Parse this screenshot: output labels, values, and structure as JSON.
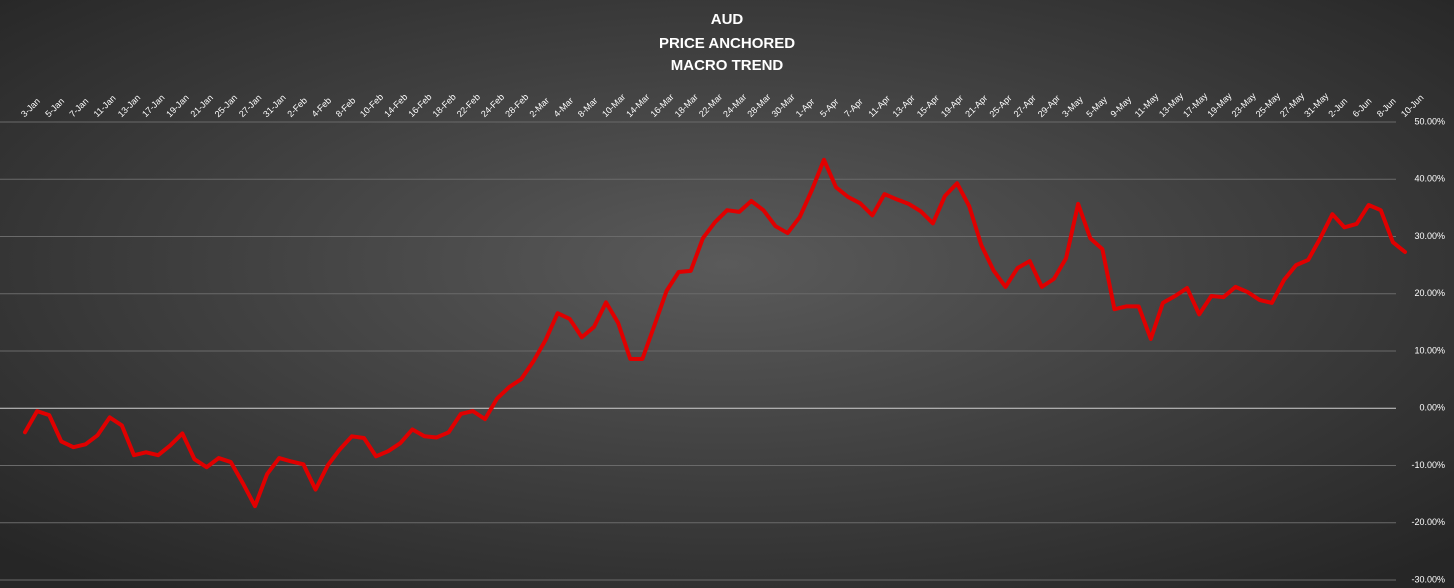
{
  "chart_data": {
    "type": "line",
    "title": [
      "AUD",
      "PRICE ANCHORED",
      "MACRO TREND"
    ],
    "categories": [
      "3-Jan",
      null,
      "5-Jan",
      null,
      "7-Jan",
      null,
      "11-Jan",
      null,
      "13-Jan",
      null,
      "17-Jan",
      null,
      "19-Jan",
      null,
      "21-Jan",
      null,
      "25-Jan",
      null,
      "27-Jan",
      null,
      "31-Jan",
      null,
      "2-Feb",
      null,
      "4-Feb",
      null,
      "8-Feb",
      null,
      "10-Feb",
      null,
      "14-Feb",
      null,
      "16-Feb",
      null,
      "18-Feb",
      null,
      "22-Feb",
      null,
      "24-Feb",
      null,
      "28-Feb",
      null,
      "2-Mar",
      null,
      "4-Mar",
      null,
      "8-Mar",
      null,
      "10-Mar",
      null,
      "14-Mar",
      null,
      "16-Mar",
      null,
      "18-Mar",
      null,
      "22-Mar",
      null,
      "24-Mar",
      null,
      "28-Mar",
      null,
      "30-Mar",
      null,
      "1-Apr",
      null,
      "5-Apr",
      null,
      "7-Apr",
      null,
      "11-Apr",
      null,
      "13-Apr",
      null,
      "15-Apr",
      null,
      "19-Apr",
      null,
      "21-Apr",
      null,
      "25-Apr",
      null,
      "27-Apr",
      null,
      "29-Apr",
      null,
      "3-May",
      null,
      "5-May",
      null,
      "9-May",
      null,
      "11-May",
      null,
      "13-May",
      null,
      "17-May",
      null,
      "19-May",
      null,
      "23-May",
      null,
      "25-May",
      null,
      "27-May",
      null,
      "31-May",
      null,
      "2-Jun",
      null,
      "6-Jun",
      null,
      "8-Jun",
      null,
      "10-Jun"
    ],
    "values": [
      -4.2,
      -0.5,
      -1.2,
      -5.8,
      -6.8,
      -6.3,
      -4.7,
      -1.6,
      -3.0,
      -8.2,
      -7.7,
      -8.2,
      -6.5,
      -4.4,
      -8.9,
      -10.3,
      -8.7,
      -9.4,
      -13.1,
      -17.1,
      -11.5,
      -8.7,
      -9.3,
      -9.8,
      -14.2,
      -10.0,
      -7.2,
      -4.9,
      -5.2,
      -8.4,
      -7.5,
      -6.1,
      -3.7,
      -4.9,
      -5.1,
      -4.2,
      -1.0,
      -0.5,
      -1.9,
      1.7,
      3.7,
      5.1,
      8.2,
      11.9,
      16.6,
      15.6,
      12.4,
      14.2,
      18.5,
      14.9,
      8.6,
      8.6,
      14.5,
      20.5,
      23.8,
      24.0,
      29.7,
      32.5,
      34.6,
      34.3,
      36.2,
      34.6,
      31.8,
      30.6,
      33.4,
      38.1,
      43.4,
      38.6,
      36.9,
      35.8,
      33.7,
      37.4,
      36.5,
      35.7,
      34.4,
      32.3,
      37.1,
      39.3,
      35.3,
      28.5,
      24.1,
      21.2,
      24.5,
      25.7,
      21.2,
      22.6,
      26.2,
      35.7,
      29.7,
      27.8,
      17.3,
      17.8,
      17.8,
      12.1,
      18.4,
      19.6,
      21.0,
      16.4,
      19.6,
      19.4,
      21.2,
      20.3,
      18.9,
      18.4,
      22.4,
      25.0,
      25.9,
      29.7,
      33.9,
      31.6,
      32.2,
      35.5,
      34.6,
      29.0,
      27.3
    ],
    "color": "#e00000",
    "ylim": [
      -30,
      50
    ],
    "yticks": [
      {
        "value": -30,
        "label": "-30.00%"
      },
      {
        "value": -20,
        "label": "-20.00%"
      },
      {
        "value": -10,
        "label": "-10.00%"
      },
      {
        "value": 0,
        "label": "0.00%"
      },
      {
        "value": 10,
        "label": "10.00%"
      },
      {
        "value": 20,
        "label": "20.00%"
      },
      {
        "value": 30,
        "label": "30.00%"
      },
      {
        "value": 40,
        "label": "40.00%"
      },
      {
        "value": 50,
        "label": "50.00%"
      }
    ],
    "grid": true
  }
}
